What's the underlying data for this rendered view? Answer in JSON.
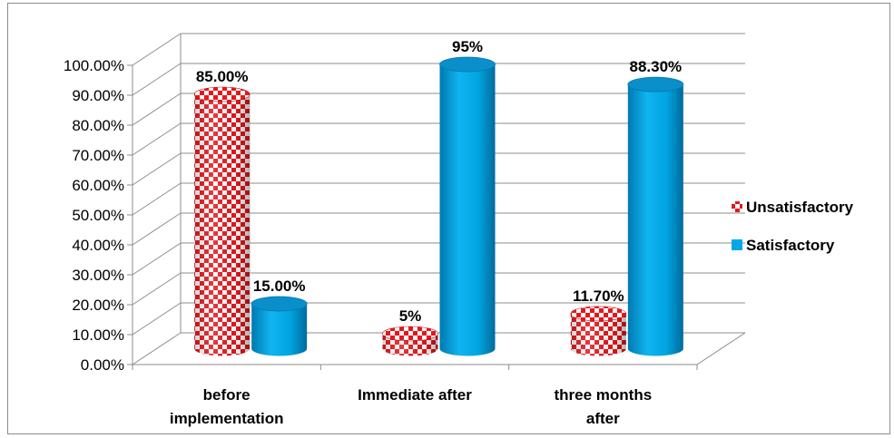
{
  "chart_data": {
    "type": "bar",
    "title": "",
    "xlabel": "",
    "ylabel": "",
    "ylim": [
      0,
      1
    ],
    "y_tick_format": "percent_2dp",
    "y_ticks": [
      "0.00%",
      "10.00%",
      "20.00%",
      "30.00%",
      "40.00%",
      "50.00%",
      "60.00%",
      "70.00%",
      "80.00%",
      "90.00%",
      "100.00%"
    ],
    "categories": [
      [
        "before",
        "implementation"
      ],
      [
        "Immediate after"
      ],
      [
        "three months",
        "after"
      ]
    ],
    "series": [
      {
        "name": "Unsatisfactory",
        "color": "#e8161b",
        "pattern": "red-white-checkerboard",
        "values": [
          0.85,
          0.05,
          0.117
        ],
        "labels": [
          "85.00%",
          "5%",
          "11.70%"
        ]
      },
      {
        "name": "Satisfactory",
        "color": "#00a8e8",
        "values": [
          0.15,
          0.95,
          0.883
        ],
        "labels": [
          "15.00%",
          "95%",
          "88.30%"
        ]
      }
    ],
    "grid": true,
    "legend_position": "right",
    "style": "3d-cylinder"
  }
}
